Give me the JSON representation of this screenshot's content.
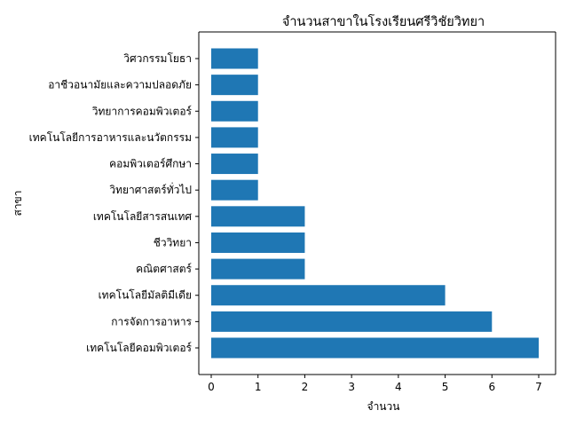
{
  "chart_data": {
    "type": "bar",
    "orientation": "horizontal",
    "title": "จำนวนสาขาในโรงเรียนศรีวิชัยวิทยา",
    "xlabel": "จำนวน",
    "ylabel": "สาขา",
    "categories": [
      "เทคโนโลยีคอมพิวเตอร์",
      "การจัดการอาหาร",
      "เทคโนโลยีมัลติมีเดีย",
      "คณิตศาสตร์",
      "ชีววิทยา",
      "เทคโนโลยีสารสนเทศ",
      "วิทยาศาสตร์ทั่วไป",
      "คอมพิวเตอร์ศึกษา",
      "เทคโนโลยีการอาหารและนวัตกรรม",
      "วิทยาการคอมพิวเตอร์",
      "อาชีวอนามัยและความปลอดภัย",
      "วิศวกรรมโยธา"
    ],
    "values": [
      7,
      6,
      5,
      2,
      2,
      2,
      1,
      1,
      1,
      1,
      1,
      1
    ],
    "xlim": [
      0,
      7.35
    ],
    "xticks": [
      "0",
      "1",
      "2",
      "3",
      "4",
      "5",
      "6",
      "7"
    ],
    "bar_color": "#1f77b4",
    "grid": false,
    "legend": "none"
  }
}
